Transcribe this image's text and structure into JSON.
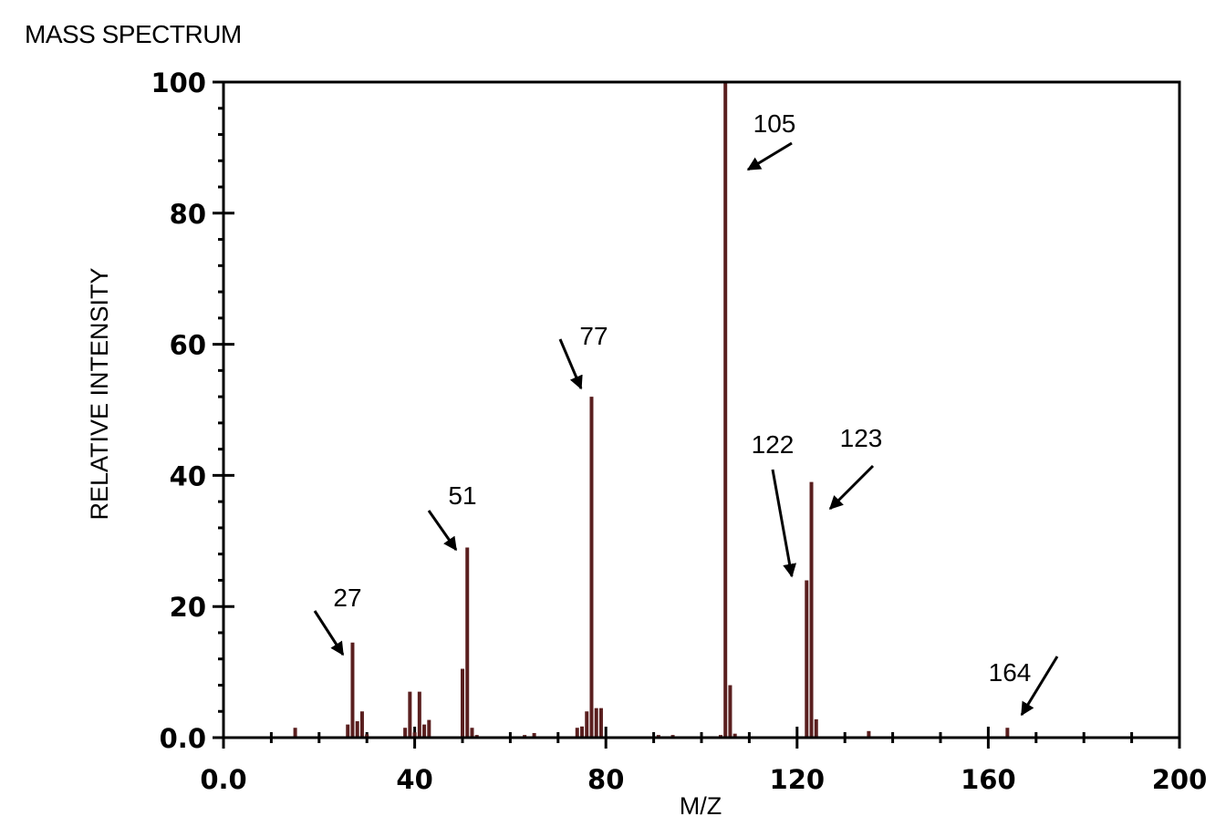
{
  "header": {
    "title": "MASS SPECTRUM"
  },
  "chart_data": {
    "type": "bar",
    "title": "MASS SPECTRUM",
    "xlabel": "M/Z",
    "ylabel": "RELATIVE INTENSITY",
    "xlim": [
      0,
      200
    ],
    "ylim": [
      0,
      100
    ],
    "xticks": [
      "0.0",
      "40",
      "80",
      "120",
      "160",
      "200"
    ],
    "yticks": [
      "0.0",
      "20",
      "40",
      "60",
      "80",
      "100"
    ],
    "grid": false,
    "bar_color": "#5a1f1f",
    "peaks": [
      {
        "mz": 15,
        "intensity": 1.5
      },
      {
        "mz": 26,
        "intensity": 2
      },
      {
        "mz": 27,
        "intensity": 14.5
      },
      {
        "mz": 28,
        "intensity": 2.5
      },
      {
        "mz": 29,
        "intensity": 4
      },
      {
        "mz": 30,
        "intensity": 0.5
      },
      {
        "mz": 38,
        "intensity": 1.5
      },
      {
        "mz": 39,
        "intensity": 7
      },
      {
        "mz": 40,
        "intensity": 0.8
      },
      {
        "mz": 41,
        "intensity": 7
      },
      {
        "mz": 42,
        "intensity": 2
      },
      {
        "mz": 43,
        "intensity": 2.7
      },
      {
        "mz": 50,
        "intensity": 10.5
      },
      {
        "mz": 51,
        "intensity": 29
      },
      {
        "mz": 52,
        "intensity": 1.5
      },
      {
        "mz": 53,
        "intensity": 0.4
      },
      {
        "mz": 63,
        "intensity": 0.4
      },
      {
        "mz": 65,
        "intensity": 0.7
      },
      {
        "mz": 74,
        "intensity": 1.5
      },
      {
        "mz": 75,
        "intensity": 1.7
      },
      {
        "mz": 76,
        "intensity": 4
      },
      {
        "mz": 77,
        "intensity": 52
      },
      {
        "mz": 78,
        "intensity": 4.5
      },
      {
        "mz": 79,
        "intensity": 4.5
      },
      {
        "mz": 91,
        "intensity": 0.4
      },
      {
        "mz": 94,
        "intensity": 0.4
      },
      {
        "mz": 104,
        "intensity": 0.4
      },
      {
        "mz": 105,
        "intensity": 100
      },
      {
        "mz": 106,
        "intensity": 8
      },
      {
        "mz": 107,
        "intensity": 0.6
      },
      {
        "mz": 122,
        "intensity": 24
      },
      {
        "mz": 123,
        "intensity": 39
      },
      {
        "mz": 124,
        "intensity": 2.8
      },
      {
        "mz": 135,
        "intensity": 1
      },
      {
        "mz": 164,
        "intensity": 1.5
      }
    ],
    "annotations": [
      {
        "label": "27",
        "mz": 27,
        "intensity": 14.5
      },
      {
        "label": "51",
        "mz": 51,
        "intensity": 29
      },
      {
        "label": "77",
        "mz": 77,
        "intensity": 52
      },
      {
        "label": "105",
        "mz": 105,
        "intensity": 100
      },
      {
        "label": "122",
        "mz": 122,
        "intensity": 24
      },
      {
        "label": "123",
        "mz": 123,
        "intensity": 39
      },
      {
        "label": "164",
        "mz": 164,
        "intensity": 1.5
      }
    ]
  }
}
